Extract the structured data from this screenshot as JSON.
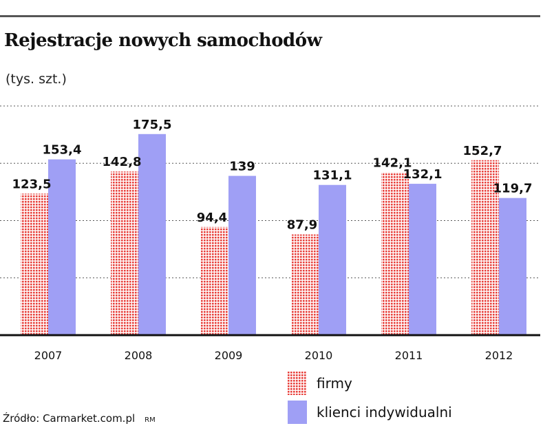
{
  "header": {
    "title": "Rejestracje nowych samochodów",
    "unit": "(tys. szt.)"
  },
  "chart_data": {
    "type": "bar",
    "title": "Rejestracje nowych samochodów",
    "ylabel": "(tys. szt.)",
    "xlabel": "",
    "categories": [
      "2007",
      "2008",
      "2009",
      "2010",
      "2011",
      "2012"
    ],
    "series": [
      {
        "name": "firmy",
        "values": [
          123.5,
          142.8,
          94.4,
          87.9,
          142.1,
          152.7
        ],
        "labels": [
          "123,5",
          "142,8",
          "94,4",
          "87,9",
          "142,1",
          "152,7"
        ],
        "color": "#e8413c",
        "pattern": "dots"
      },
      {
        "name": "klienci indywidualni",
        "values": [
          153.4,
          175.5,
          139,
          131.1,
          132.1,
          119.7
        ],
        "labels": [
          "153,4",
          "175,5",
          "139",
          "131,1",
          "132,1",
          "119,7"
        ],
        "color": "#9f9ff5",
        "pattern": "solid"
      }
    ],
    "ylim": [
      0,
      200
    ],
    "grid": true,
    "legend_position": "bottom-right"
  },
  "footer": {
    "source": "Źródło: Carmarket.com.pl",
    "credit": "RM"
  }
}
